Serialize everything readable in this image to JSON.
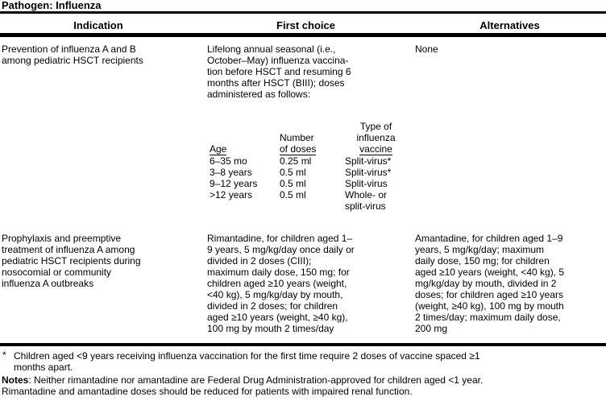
{
  "header": {
    "pathogen_label": "Pathogen: Influenza"
  },
  "table": {
    "columns": [
      "Indication",
      "First choice",
      "Alternatives"
    ],
    "rows": [
      {
        "indication": [
          "Prevention of influenza A and B",
          "among pediatric HSCT recipients"
        ],
        "first_choice": [
          "Lifelong annual seasonal (i.e.,",
          "October–May) influenza vaccina-",
          "tion before HSCT and resuming 6",
          "months after HSCT (BIII); doses",
          "administered as follows:"
        ],
        "alternatives": [
          "None"
        ],
        "subtable": {
          "headers": [
            {
              "top": [],
              "label": "Age"
            },
            {
              "top": [
                "Number"
              ],
              "label": "of doses"
            },
            {
              "top": [
                "Type of",
                "influenza"
              ],
              "label": "vaccine"
            }
          ],
          "rows": [
            {
              "age": "6–35 mo",
              "doses": "0.25 ml",
              "vaccine": [
                "Split-virus*"
              ]
            },
            {
              "age": "3–8 years",
              "doses": "0.5 ml",
              "vaccine": [
                "Split-virus*"
              ]
            },
            {
              "age": "9–12 years",
              "doses": "0.5 ml",
              "vaccine": [
                "Split-virus"
              ]
            },
            {
              "age": ">12 years",
              "doses": "0.5 ml",
              "vaccine": [
                "Whole- or",
                "split-virus"
              ]
            }
          ]
        }
      },
      {
        "indication": [
          "Prophylaxis and preemptive",
          "treatment of influenza A among",
          "pediatric HSCT recipients during",
          "nosocomial or community",
          "influenza A outbreaks"
        ],
        "first_choice": [
          "Rimantadine, for children aged 1–",
          "9 years, 5 mg/kg/day once daily or",
          "divided in 2 doses (CIII);",
          "maximum daily dose, 150 mg; for",
          "children aged ≥10 years (weight,",
          "<40 kg), 5 mg/kg/day by mouth,",
          "divided in 2 doses; for children",
          "aged ≥10 years (weight, ≥40 kg),",
          "100 mg by mouth 2 times/day"
        ],
        "alternatives": [
          "Amantadine, for children aged 1–9",
          "years, 5 mg/kg/day; maximum",
          "daily dose, 150 mg; for children",
          "aged ≥10 years (weight, <40 kg), 5",
          "mg/kg/day by mouth, divided in 2",
          "doses; for children aged ≥10 years",
          "(weight, ≥40 kg), 100 mg by mouth",
          "2 times/day; maximum daily dose,",
          "200 mg"
        ]
      }
    ]
  },
  "footnotes": {
    "asterisk_symbol": "*",
    "asterisk_lines": [
      "Children aged <9 years receiving influenza vaccination for the first time require 2 doses of vaccine spaced ≥1",
      "months apart."
    ],
    "notes_label": "Notes",
    "notes_lines": [
      ": Neither rimantadine nor amantadine are Federal Drug Administration-approved for children aged <1 year.",
      "Rimantadine and amantadine doses should be reduced for patients with impaired renal function."
    ]
  }
}
